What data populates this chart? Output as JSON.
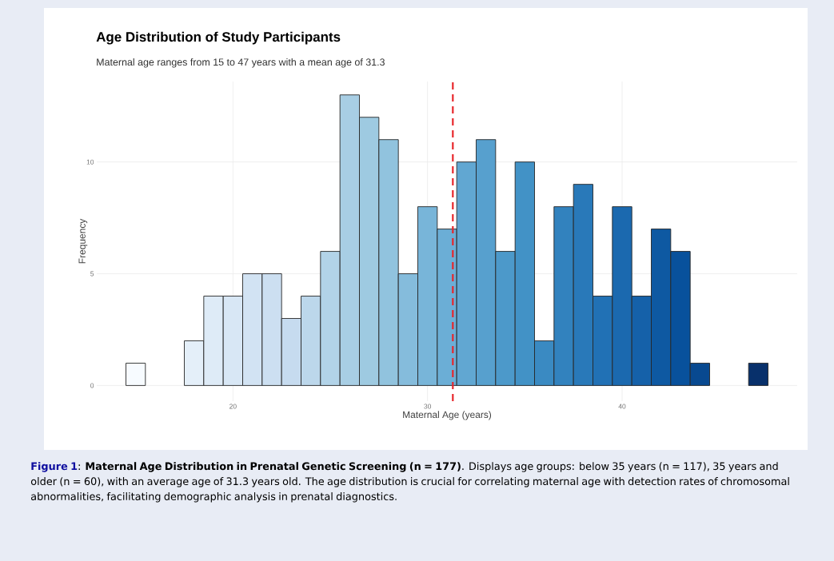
{
  "chart_data": {
    "type": "histogram",
    "title": "Age Distribution of Study Participants",
    "subtitle": "Maternal age ranges from 15 to 47 years with a mean age of 31.3",
    "xlabel": "Maternal Age (years)",
    "ylabel": "Frequency",
    "bins": [
      14.5,
      15.5,
      16.5,
      17.5,
      18.5,
      19.5,
      20.5,
      21.5,
      22.5,
      23.5,
      24.5,
      25.5,
      26.5,
      27.5,
      28.5,
      29.5,
      30.5,
      31.5,
      32.5,
      33.5,
      34.5,
      35.5,
      36.5,
      37.5,
      38.5,
      39.5,
      40.5,
      41.5,
      42.5,
      43.5,
      44.5,
      45.5,
      46.5,
      47.5
    ],
    "values": [
      1,
      0,
      0,
      2,
      4,
      4,
      5,
      5,
      3,
      4,
      6,
      13,
      12,
      11,
      5,
      8,
      7,
      10,
      11,
      6,
      10,
      2,
      8,
      9,
      4,
      8,
      4,
      7,
      6,
      1,
      0,
      0,
      1
    ],
    "colors": [
      "#f7fbff",
      "#f1f7fd",
      "#ebf3fb",
      "#e4eff9",
      "#deebf7",
      "#d8e7f5",
      "#d2e3f3",
      "#ccdff1",
      "#c6dbef",
      "#bcd7eb",
      "#b2d3e8",
      "#a8cee4",
      "#9ecae1",
      "#91c3de",
      "#85bcdc",
      "#78b5d9",
      "#6baed6",
      "#61a7d2",
      "#57a0ce",
      "#4c99ca",
      "#4292c6",
      "#3a8ac2",
      "#3282be",
      "#2979b9",
      "#2171b5",
      "#1b69af",
      "#1561a9",
      "#0e59a2",
      "#08519c",
      "#084990",
      "#084184",
      "#083877",
      "#08306b"
    ],
    "xlim": [
      13.0,
      49.0
    ],
    "ylim": [
      -0.7,
      13.6
    ],
    "xticks": [
      20,
      30,
      40
    ],
    "yticks": [
      0,
      5,
      10
    ],
    "grid": true,
    "ref_lines": [
      {
        "axis": "x",
        "value": 31.3,
        "color": "#e8262b",
        "line_style": "dashed"
      }
    ],
    "annotations": [
      "Figure 1",
      ": **Maternal Age Distribution in Prenatal Genetic Screening (n = 177)**. Displays age groups: below 35 years (n = 117), 35 years and older (n = 60), with an average age of 31.3 years old. The age distribution is crucial for correlating maternal age with detection rates of chromosomal abnormalities, facilitating demographic analysis in prenatal diagnostics."
    ]
  }
}
